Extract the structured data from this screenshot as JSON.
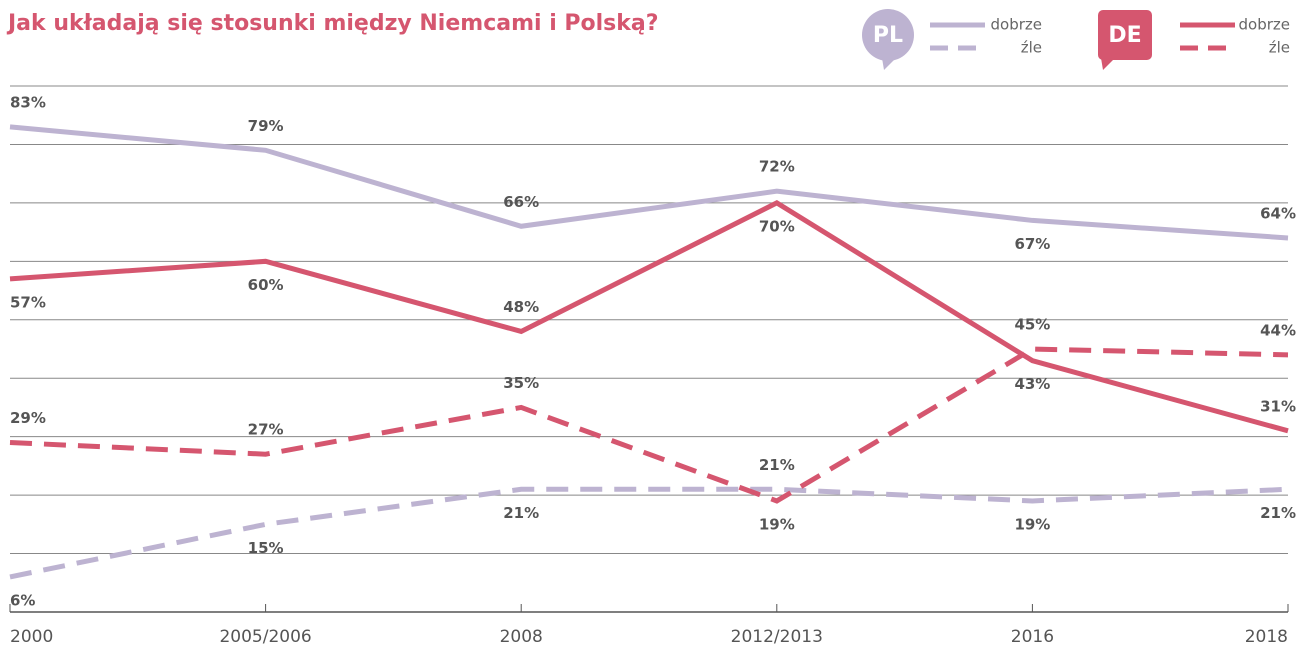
{
  "chart_data": {
    "type": "line",
    "title": "Jak układają się stosunki między Niemcami i Polską?",
    "categories": [
      "2000",
      "2005/2006",
      "2008",
      "2012/2013",
      "2016",
      "2018"
    ],
    "ylim": [
      0,
      90
    ],
    "yticks": [
      0,
      10,
      20,
      30,
      40,
      50,
      60,
      70,
      80,
      90
    ],
    "grid": true,
    "series": [
      {
        "name": "dobrze",
        "group": "PL",
        "color": "#bdb3d1",
        "dashed": false,
        "values": [
          83,
          79,
          66,
          72,
          67,
          64
        ],
        "value_labels": [
          "83%",
          "79%",
          "66%",
          "72%",
          "67%",
          "64%"
        ]
      },
      {
        "name": "źle",
        "group": "PL",
        "color": "#bdb3d1",
        "dashed": true,
        "values": [
          6,
          15,
          21,
          21,
          19,
          21
        ],
        "value_labels": [
          "6%",
          "15%",
          "21%",
          "21%",
          "19%",
          "21%"
        ]
      },
      {
        "name": "dobrze",
        "group": "DE",
        "color": "#d5566f",
        "dashed": false,
        "values": [
          57,
          60,
          48,
          70,
          43,
          31
        ],
        "value_labels": [
          "57%",
          "60%",
          "48%",
          "70%",
          "43%",
          "31%"
        ]
      },
      {
        "name": "źle",
        "group": "DE",
        "color": "#d5566f",
        "dashed": true,
        "values": [
          29,
          27,
          35,
          19,
          45,
          44
        ],
        "value_labels": [
          "29%",
          "27%",
          "35%",
          "19%",
          "45%",
          "44%"
        ]
      }
    ]
  }
}
